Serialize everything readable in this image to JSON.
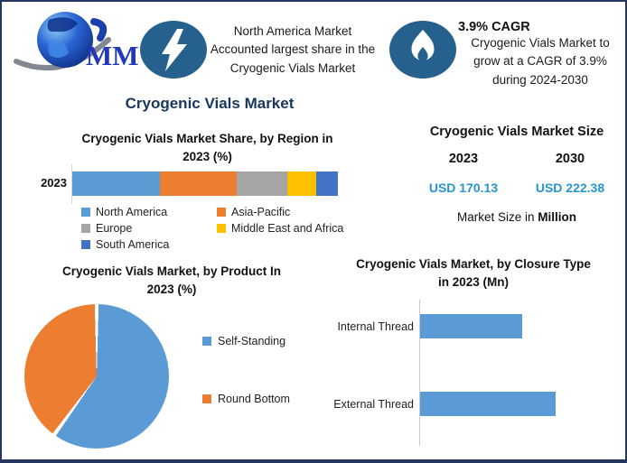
{
  "logo": {
    "text": "MMR"
  },
  "callout_left": {
    "lines": [
      "North America Market",
      "Accounted largest share in the",
      "Cryogenic Vials Market"
    ]
  },
  "callout_right": {
    "heading": "3.9% CAGR",
    "lines": [
      "Cryogenic Vials Market to",
      "grow at a CAGR of 3.9%",
      "during 2024-2030"
    ]
  },
  "main_title": "Cryogenic Vials Market",
  "region_chart": {
    "title_line1": "Cryogenic Vials Market Share, by Region in",
    "title_line2": "2023 (%)",
    "axis_label": "2023"
  },
  "market_size_panel": {
    "title": "Cryogenic Vials Market Size",
    "years": [
      "2023",
      "2030"
    ],
    "values": [
      "USD 170.13",
      "USD 222.38"
    ],
    "value_color": "#2795d0",
    "footnote_text": "Market Size in",
    "footnote_bold": "Million"
  },
  "product_chart": {
    "title_line1": "Cryogenic Vials Market, by Product In",
    "title_line2": "2023 (%)"
  },
  "closure_chart": {
    "title_line1": "Cryogenic Vials Market, by Closure Type",
    "title_line2": "in 2023 (Mn)"
  },
  "colors": {
    "border_navy": "#24355f",
    "title_navy": "#17375e",
    "icon_blue": "#26618e",
    "bar_blue": "#5b9bd5"
  },
  "chart_data": [
    {
      "type": "bar",
      "subtype": "stacked-horizontal-100pct",
      "title": "Cryogenic Vials Market Share, by Region in 2023 (%)",
      "categories": [
        "2023"
      ],
      "unit": "%",
      "legend_position": "bottom",
      "series": [
        {
          "name": "North America",
          "values": [
            33
          ],
          "color": "#5b9bd5"
        },
        {
          "name": "Asia-Pacific",
          "values": [
            29
          ],
          "color": "#ed7d31"
        },
        {
          "name": "Europe",
          "values": [
            19
          ],
          "color": "#a5a5a5"
        },
        {
          "name": "Middle East and Africa",
          "values": [
            11
          ],
          "color": "#ffc000"
        },
        {
          "name": "South America",
          "values": [
            8
          ],
          "color": "#4472c4"
        }
      ]
    },
    {
      "type": "pie",
      "title": "Cryogenic Vials Market, by Product In 2023 (%)",
      "labels": [
        "Self-Standing",
        "Round Bottom"
      ],
      "values": [
        60,
        40
      ],
      "colors": [
        "#5b9bd5",
        "#ed7d31"
      ],
      "unit": "%",
      "start_angle_deg": 0,
      "legend_position": "right"
    },
    {
      "type": "bar",
      "subtype": "horizontal",
      "title": "Cryogenic Vials Market, by Closure Type in 2023 (Mn)",
      "categories": [
        "Internal Thread",
        "External Thread"
      ],
      "values": [
        75,
        100
      ],
      "color": "#5b9bd5",
      "unit": "Mn",
      "note": "Axis unlabeled in source; values are relative bar lengths"
    }
  ]
}
